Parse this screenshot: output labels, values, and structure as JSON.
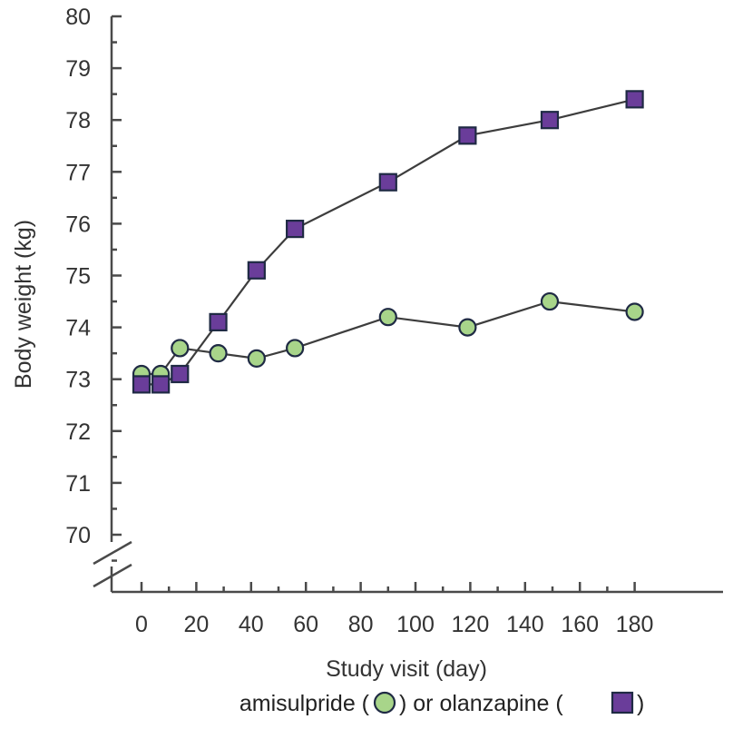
{
  "chart_data": {
    "type": "line",
    "title": "",
    "xlabel": "Study visit (day)",
    "ylabel": "Body weight (kg)",
    "xlim": [
      -10,
      190
    ],
    "ylim": [
      69.0,
      80.0
    ],
    "axis_break": "y-axis between 69 and 70",
    "xticks_major": [
      0,
      20,
      40,
      60,
      80,
      100,
      120,
      140,
      160,
      180
    ],
    "xticks_minor": [
      10,
      30,
      50,
      70,
      90,
      110,
      130,
      150,
      170
    ],
    "yticks_major": [
      70,
      71,
      72,
      73,
      74,
      75,
      76,
      77,
      78,
      79,
      80
    ],
    "xtick_labels": [
      "0",
      "20",
      "40",
      "60",
      "80",
      "100",
      "120",
      "140",
      "160",
      "180"
    ],
    "ytick_labels": [
      "70",
      "71",
      "72",
      "73",
      "74",
      "75",
      "76",
      "77",
      "78",
      "79",
      "80"
    ],
    "series": [
      {
        "name": "amisulpride",
        "marker": "circle",
        "color": "#a8d58a",
        "x": [
          0,
          7,
          14,
          28,
          42,
          56,
          90,
          119,
          149,
          180
        ],
        "y": [
          73.1,
          73.1,
          73.6,
          73.5,
          73.4,
          73.6,
          74.2,
          74.0,
          74.5,
          74.3
        ]
      },
      {
        "name": "olanzapine",
        "marker": "square",
        "color": "#6a3d9a",
        "x": [
          0,
          7,
          14,
          28,
          42,
          56,
          90,
          119,
          149,
          180
        ],
        "y": [
          72.9,
          72.9,
          73.1,
          74.1,
          75.1,
          75.9,
          76.8,
          77.7,
          78.0,
          78.4
        ]
      }
    ],
    "legend": {
      "placement": "bottom-center",
      "part1": "amisulpride (",
      "part2": ") or olanzapine (",
      "part3": ")"
    }
  },
  "colors": {
    "axis": "#4a4a4a",
    "line": "#3d3d3d",
    "marker_edge": "#1f2a44"
  }
}
